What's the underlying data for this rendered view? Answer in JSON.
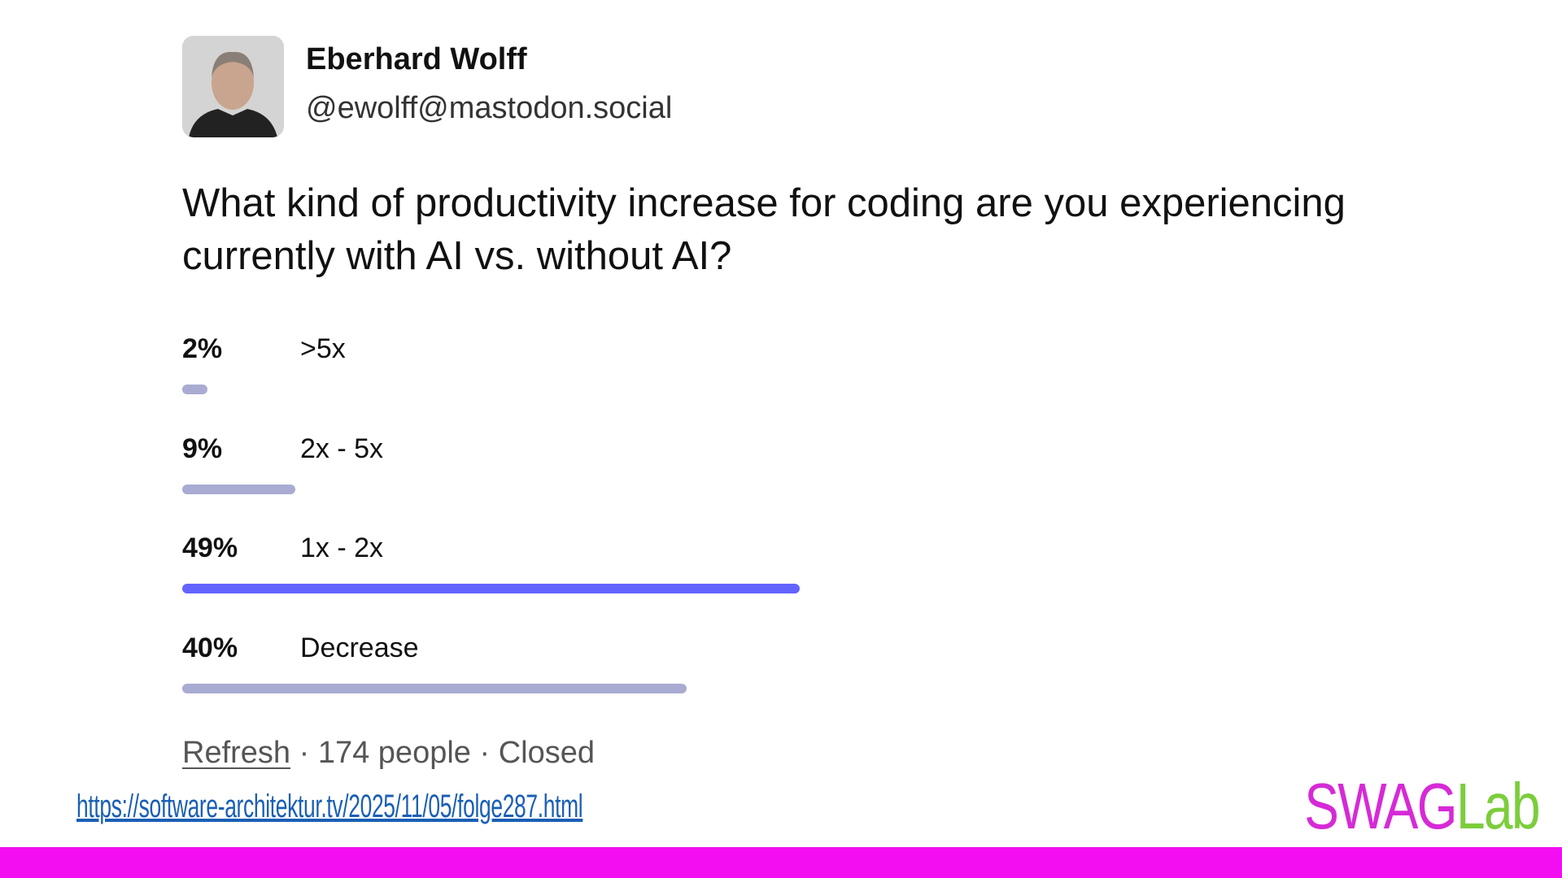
{
  "post": {
    "author": "Eberhard Wolff",
    "handle": "@ewolff@mastodon.social",
    "question": "What kind of productivity increase for coding are you experiencing currently with AI vs. without AI?",
    "poll": {
      "options": [
        {
          "percent": 2,
          "percent_label": "2%",
          "label": ">5x"
        },
        {
          "percent": 9,
          "percent_label": "9%",
          "label": "2x - 5x"
        },
        {
          "percent": 49,
          "percent_label": "49%",
          "label": "1x - 2x",
          "leading": true
        },
        {
          "percent": 40,
          "percent_label": "40%",
          "label": "Decrease"
        }
      ],
      "bar_color": "#a9abd2",
      "leading_color": "#6364ff",
      "footer": {
        "refresh": "Refresh",
        "separator": "·",
        "voters": "174 people",
        "status": "Closed"
      }
    }
  },
  "slide": {
    "url": "https://software-architektur.tv/2025/11/05/folge287.html",
    "logo": {
      "part1": "SWAG",
      "part2": "Lab"
    }
  }
}
